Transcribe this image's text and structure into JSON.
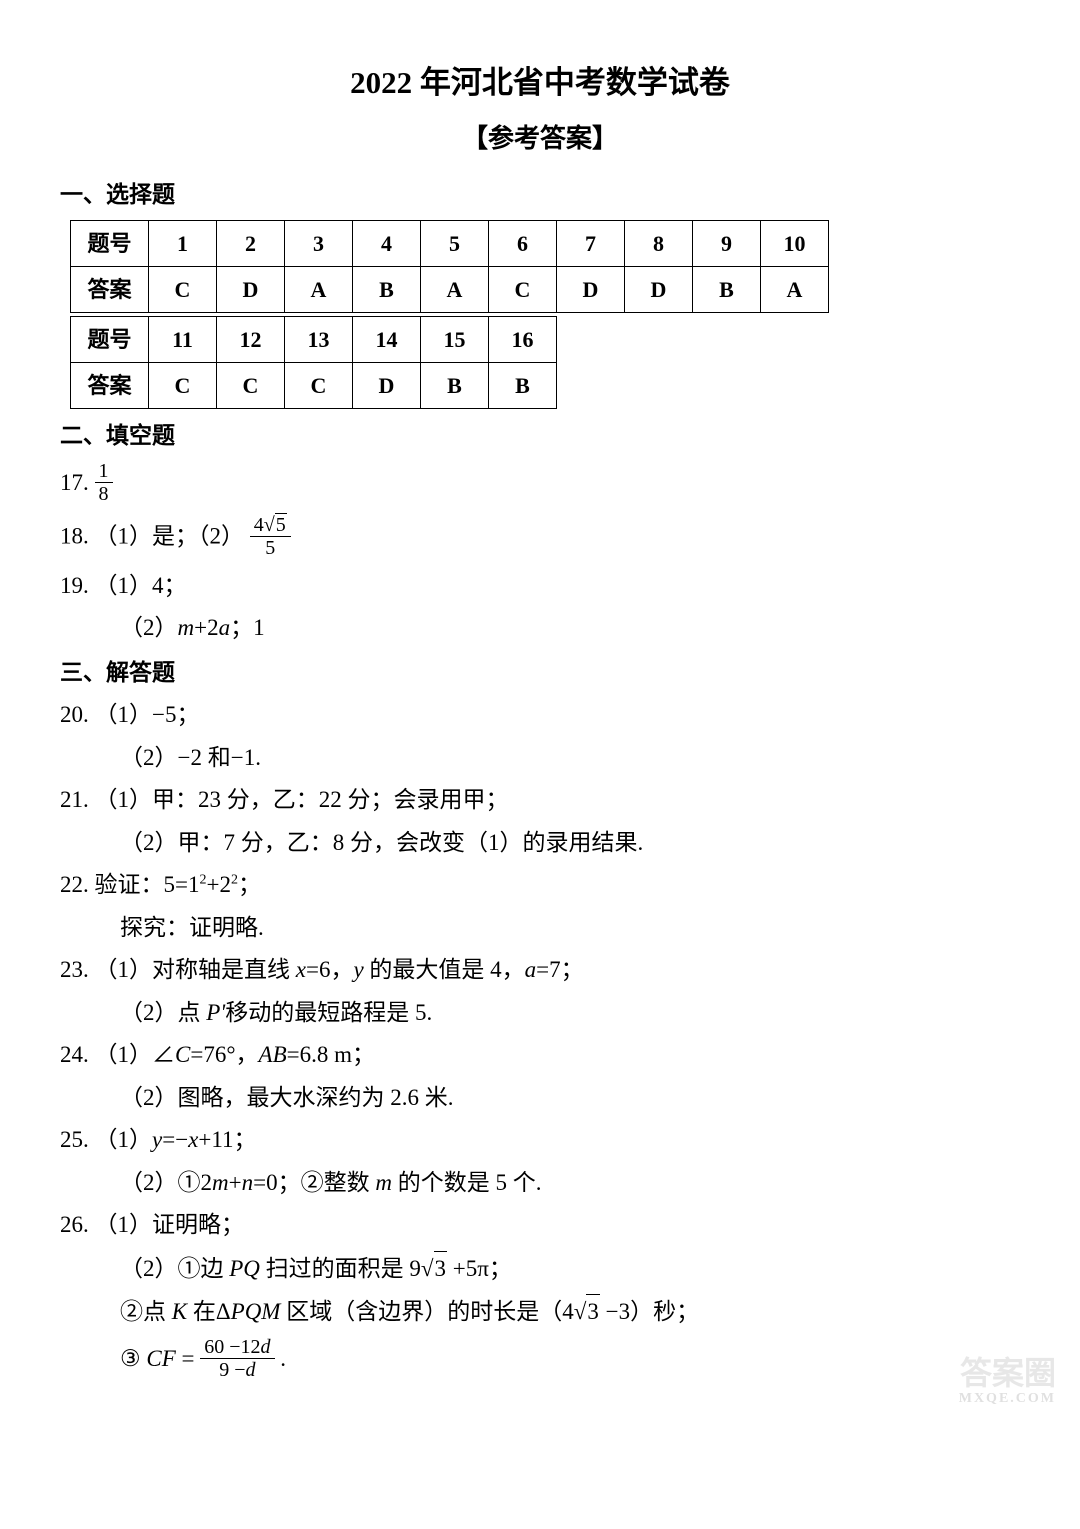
{
  "title": "2022 年河北省中考数学试卷",
  "subtitle": "【参考答案】",
  "section1": {
    "header": "一、选择题",
    "row1_label": "题号",
    "row1": [
      "1",
      "2",
      "3",
      "4",
      "5",
      "6",
      "7",
      "8",
      "9",
      "10"
    ],
    "row2_label": "答案",
    "row2": [
      "C",
      "D",
      "A",
      "B",
      "A",
      "C",
      "D",
      "D",
      "B",
      "A"
    ],
    "row3_label": "题号",
    "row3": [
      "11",
      "12",
      "13",
      "14",
      "15",
      "16"
    ],
    "row4_label": "答案",
    "row4": [
      "C",
      "C",
      "C",
      "D",
      "B",
      "B"
    ]
  },
  "section2": {
    "header": "二、填空题",
    "q17": {
      "num": "17. ",
      "frac_top": "1",
      "frac_bot": "8"
    },
    "q18": {
      "num": "18. ",
      "part1": "（1）是；（2）",
      "frac_top": "4",
      "sqrt_val": "5",
      "frac_bot": "5"
    },
    "q19": {
      "num": "19. ",
      "part1": "（1）4；",
      "part2_a": "（2）",
      "part2_b": "m",
      "part2_c": "+2",
      "part2_d": "a",
      "part2_e": "；1"
    }
  },
  "section3": {
    "header": "三、解答题",
    "q20": {
      "num": "20. ",
      "part1": "（1）−5；",
      "part2": "（2）−2 和−1."
    },
    "q21": {
      "num": "21. ",
      "part1": "（1）甲：23 分，乙：22 分；会录用甲；",
      "part2": "（2）甲：7 分，乙：8 分，会改变（1）的录用结果."
    },
    "q22": {
      "num": "22. ",
      "part1a": "验证：5=1",
      "part1b": "2",
      "part1c": "+2",
      "part1d": "2",
      "part1e": "；",
      "part2": "探究：证明略."
    },
    "q23": {
      "num": "23. ",
      "p1a": "（1）对称轴是直线 ",
      "p1b": "x",
      "p1c": "=6，",
      "p1d": "y",
      "p1e": " 的最大值是 4，",
      "p1f": "a",
      "p1g": "=7；",
      "p2a": "（2）点 ",
      "p2b": "P'",
      "p2c": "移动的最短路程是 5."
    },
    "q24": {
      "num": "24. ",
      "p1a": "（1）∠",
      "p1b": "C",
      "p1c": "=76°，",
      "p1d": "AB",
      "p1e": "=6.8 m；",
      "p2": "（2）图略，最大水深约为 2.6 米."
    },
    "q25": {
      "num": "25. ",
      "p1a": "（1）",
      "p1b": "y",
      "p1c": "=−",
      "p1d": "x",
      "p1e": "+11；",
      "p2a": "（2）",
      "c1": "①",
      "p2b": "2",
      "p2b_m": "m",
      "p2c": "+",
      "p2c_n": "n",
      "p2d": "=0；",
      "c2": "②",
      "p2e": "整数 ",
      "p2e_m": "m",
      "p2f": " 的个数是 5 个."
    },
    "q26": {
      "num": "26. ",
      "p1": "（1）证明略；",
      "p2a": "（2）",
      "c1": "①",
      "p2b": "边 ",
      "p2c": "PQ",
      "p2d": " 扫过的面积是 9",
      "sqrt3a": "3",
      "p2e": " +5π；",
      "c2": "②",
      "p3a": "点 ",
      "p3b": "K ",
      "p3c": "在Δ",
      "p3d": "PQM ",
      "p3e": "区域（含边界）的时长是（4",
      "sqrt3b": "3",
      "p3f": " −3）秒；",
      "c3": "③",
      "p4a": "CF",
      "p4b": "=",
      "frac_top_a": "60 −12",
      "frac_top_b": "d",
      "frac_bot_a": "9 −",
      "frac_bot_b": "d",
      "p4c": "."
    }
  },
  "watermark": {
    "main": "答案圈",
    "sub": "MXQE.COM"
  }
}
